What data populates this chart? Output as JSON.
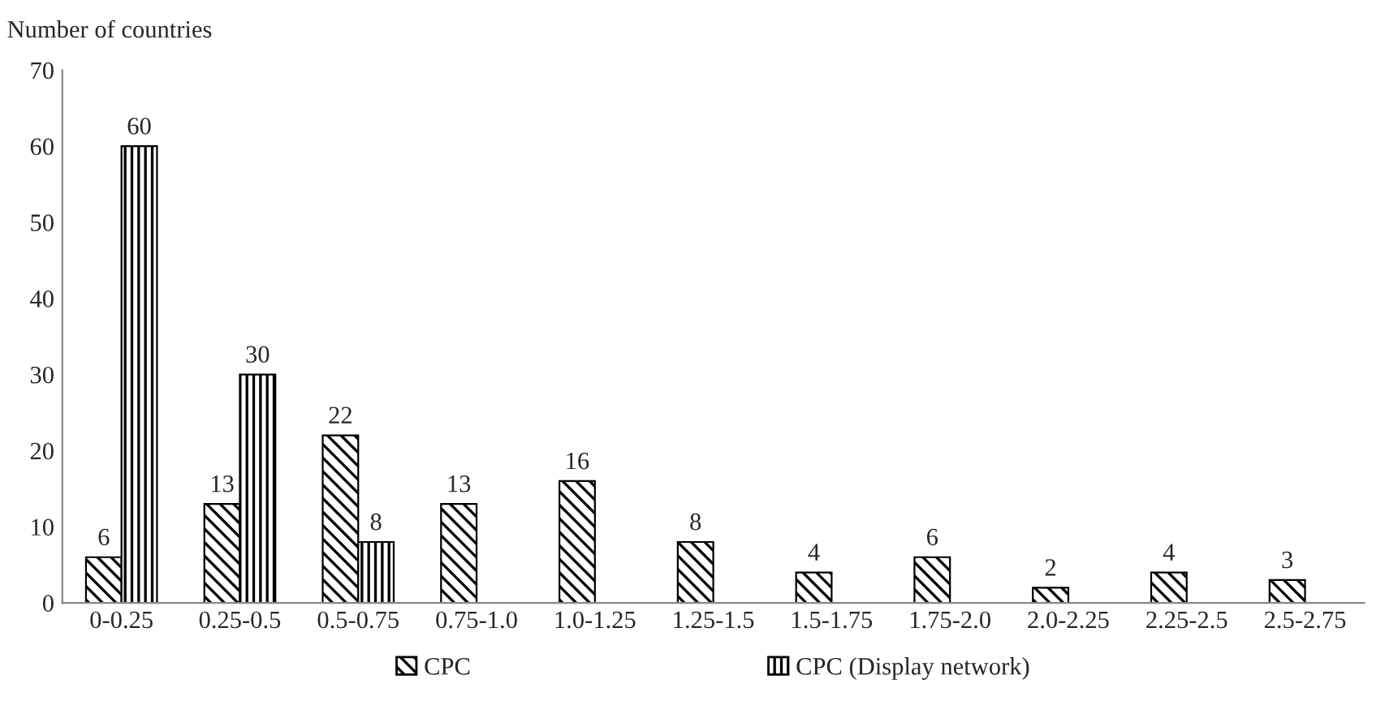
{
  "chart_data": {
    "type": "bar",
    "ylabel": "Number of countries",
    "categories": [
      "0-0.25",
      "0.25-0.5",
      "0.5-0.75",
      "0.75-1.0",
      "1.0-1.25",
      "1.25-1.5",
      "1.5-1.75",
      "1.75-2.0",
      "2.0-2.25",
      "2.25-2.5",
      "2.5-2.75"
    ],
    "series": [
      {
        "name": "CPC",
        "color": "#000000",
        "values": [
          6,
          13,
          22,
          13,
          16,
          8,
          4,
          6,
          2,
          4,
          3
        ]
      },
      {
        "name": "CPC (Display network)",
        "color": "#000000",
        "values": [
          60,
          30,
          8,
          null,
          null,
          null,
          null,
          null,
          null,
          null,
          null
        ]
      }
    ],
    "ylim": [
      0,
      70
    ],
    "yticks": [
      0,
      10,
      20,
      30,
      40,
      50,
      60,
      70
    ],
    "data_labels": true,
    "grid": false,
    "legend": "bottom"
  }
}
